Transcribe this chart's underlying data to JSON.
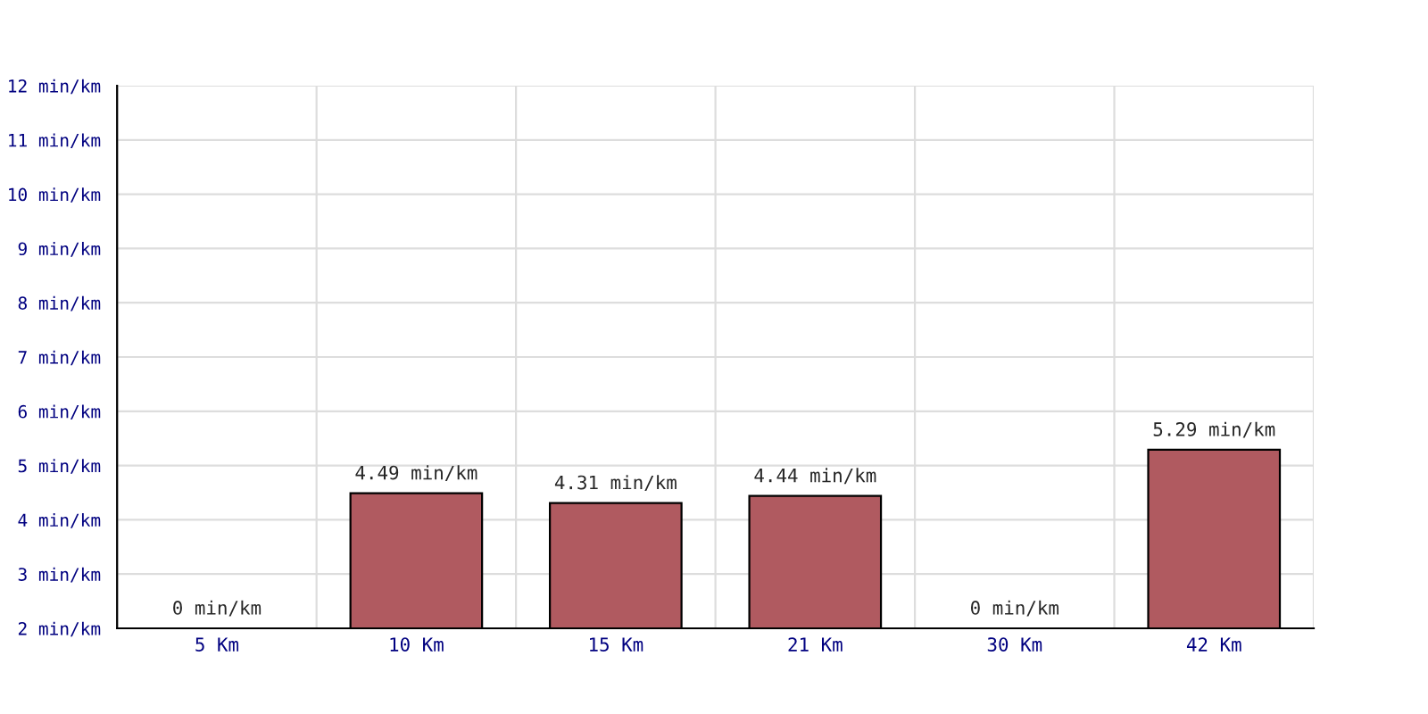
{
  "chart_data": {
    "type": "bar",
    "categories": [
      "5 Km",
      "10 Km",
      "15 Km",
      "21 Km",
      "30 Km",
      "42 Km"
    ],
    "values": [
      null,
      4.49,
      4.31,
      4.44,
      null,
      5.29
    ],
    "color": "#b05a60",
    "value_labels": [
      "0 min/km",
      "4.49 min/km",
      "4.31 min/km",
      "4.44 min/km",
      "0 min/km",
      "5.29 min/km"
    ],
    "ylim": [
      2,
      12
    ],
    "yticks": [
      {
        "value": 2,
        "label": "2 min/km"
      },
      {
        "value": 3,
        "label": "3 min/km"
      },
      {
        "value": 4,
        "label": "4 min/km"
      },
      {
        "value": 5,
        "label": "5 min/km"
      },
      {
        "value": 6,
        "label": "6 min/km"
      },
      {
        "value": 7,
        "label": "7 min/km"
      },
      {
        "value": 8,
        "label": "8 min/km"
      },
      {
        "value": 9,
        "label": "9 min/km"
      },
      {
        "value": 10,
        "label": "10 min/km"
      },
      {
        "value": 11,
        "label": "11 min/km"
      },
      {
        "value": 12,
        "label": "12 min/km"
      }
    ],
    "grid": true
  }
}
